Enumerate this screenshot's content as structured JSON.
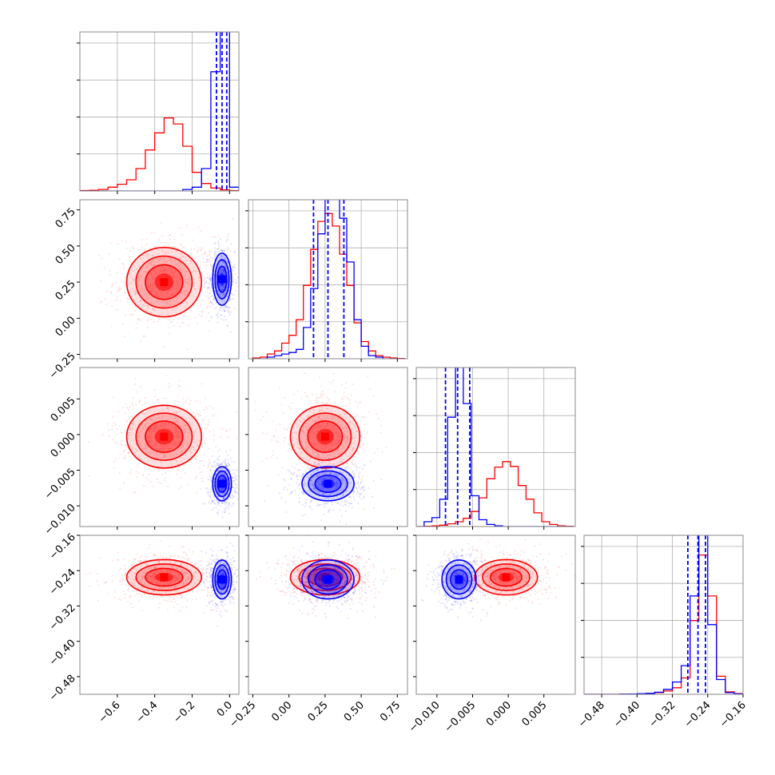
{
  "chart_data": {
    "type": "corner",
    "parameters": [
      {
        "range": [
          -0.8,
          0.05
        ],
        "ticks": [
          -0.6,
          -0.4,
          -0.2,
          0.0
        ],
        "tick_labels": [
          "−0.6",
          "−0.4",
          "−0.2",
          "0.0"
        ]
      },
      {
        "range": [
          -0.28,
          0.82
        ],
        "ticks": [
          -0.25,
          0.0,
          0.25,
          0.5,
          0.75
        ],
        "tick_labels": [
          "−0.25",
          "0.00",
          "0.25",
          "0.50",
          "0.75"
        ]
      },
      {
        "range": [
          -0.0129,
          0.0094
        ],
        "ticks": [
          -0.01,
          -0.005,
          0.0,
          0.005
        ],
        "tick_labels": [
          "−0.010",
          "−0.005",
          "0.000",
          "0.005"
        ]
      },
      {
        "range": [
          -0.52,
          -0.16
        ],
        "ticks": [
          -0.48,
          -0.4,
          -0.32,
          -0.24,
          -0.16
        ],
        "tick_labels": [
          "−0.48",
          "−0.40",
          "−0.32",
          "−0.24",
          "−0.16"
        ]
      }
    ],
    "series": [
      {
        "color": "#ff0000",
        "mean": [
          -0.35,
          0.25,
          -0.0003,
          -0.255
        ],
        "std": [
          0.1,
          0.12,
          0.0022,
          0.02
        ]
      },
      {
        "color": "#0000ff",
        "mean": [
          -0.04,
          0.27,
          -0.0069,
          -0.26
        ],
        "std": [
          0.025,
          0.09,
          0.0012,
          0.022
        ]
      }
    ],
    "quantiles_series": "blue",
    "quantiles": [
      [
        -0.07,
        -0.04,
        -0.015
      ],
      [
        0.17,
        0.27,
        0.38
      ],
      [
        -0.0088,
        -0.0071,
        -0.0054
      ],
      [
        -0.285,
        -0.262,
        -0.245
      ]
    ],
    "histograms": [
      {
        "bins": [
          -0.8,
          -0.75,
          -0.7,
          -0.65,
          -0.6,
          -0.55,
          -0.5,
          -0.45,
          -0.4,
          -0.35,
          -0.3,
          -0.25,
          -0.2,
          -0.15,
          -0.1,
          -0.05,
          0.0,
          0.05
        ],
        "red": [
          0.005,
          0.01,
          0.02,
          0.05,
          0.09,
          0.15,
          0.3,
          0.55,
          0.78,
          0.98,
          0.9,
          0.6,
          0.25,
          0.1,
          0.04,
          0.015,
          0.005
        ],
        "blue": [
          0,
          0,
          0,
          0,
          0,
          0,
          0,
          0,
          0,
          0,
          0,
          0.02,
          0.05,
          0.3,
          1.6,
          2.2,
          0.05
        ]
      },
      {
        "bins": [
          -0.25,
          -0.2,
          -0.15,
          -0.1,
          -0.05,
          0.0,
          0.05,
          0.1,
          0.15,
          0.2,
          0.25,
          0.3,
          0.35,
          0.4,
          0.45,
          0.5,
          0.55,
          0.6,
          0.65,
          0.7,
          0.75,
          0.8
        ],
        "red": [
          0.005,
          0.01,
          0.03,
          0.05,
          0.1,
          0.15,
          0.25,
          0.47,
          0.7,
          0.88,
          0.93,
          0.85,
          0.67,
          0.47,
          0.23,
          0.11,
          0.05,
          0.02,
          0.01,
          0.005,
          0.002
        ],
        "blue": [
          0,
          0,
          0.01,
          0.02,
          0.03,
          0.04,
          0.06,
          0.2,
          0.45,
          0.8,
          1.05,
          1.05,
          0.9,
          0.62,
          0.25,
          0.08,
          0.02,
          0.01,
          0,
          0,
          0
        ]
      },
      {
        "bins": [
          -0.0129,
          -0.0118,
          -0.0107,
          -0.0096,
          -0.0085,
          -0.0074,
          -0.0063,
          -0.0052,
          -0.0041,
          -0.003,
          -0.0019,
          -0.0008,
          0.0003,
          0.0014,
          0.0025,
          0.0036,
          0.0047,
          0.0058,
          0.0069,
          0.008,
          0.0091
        ],
        "red": [
          0,
          0.005,
          0.01,
          0.02,
          0.04,
          0.07,
          0.12,
          0.22,
          0.42,
          0.7,
          0.87,
          0.95,
          0.88,
          0.6,
          0.4,
          0.2,
          0.07,
          0.03,
          0.01,
          0.005
        ],
        "blue": [
          0,
          0.07,
          0.13,
          0.4,
          1.6,
          2.4,
          1.8,
          0.45,
          0.1,
          0.03,
          0.01,
          0,
          0,
          0,
          0,
          0,
          0,
          0,
          0,
          0
        ]
      },
      {
        "bins": [
          -0.52,
          -0.5,
          -0.48,
          -0.46,
          -0.44,
          -0.42,
          -0.4,
          -0.38,
          -0.36,
          -0.34,
          -0.32,
          -0.3,
          -0.28,
          -0.26,
          -0.24,
          -0.22,
          -0.2,
          -0.18,
          -0.16
        ],
        "red": [
          0,
          0,
          0,
          0,
          0.002,
          0.003,
          0.005,
          0.01,
          0.02,
          0.04,
          0.08,
          0.2,
          0.9,
          1.7,
          1.2,
          0.22,
          0.03,
          0.01
        ],
        "blue": [
          0,
          0,
          0,
          0,
          0.002,
          0.004,
          0.007,
          0.012,
          0.025,
          0.06,
          0.15,
          0.35,
          1.2,
          2.0,
          0.85,
          0.18,
          0.02,
          0.005
        ]
      }
    ],
    "grid": true,
    "legend": "none"
  }
}
